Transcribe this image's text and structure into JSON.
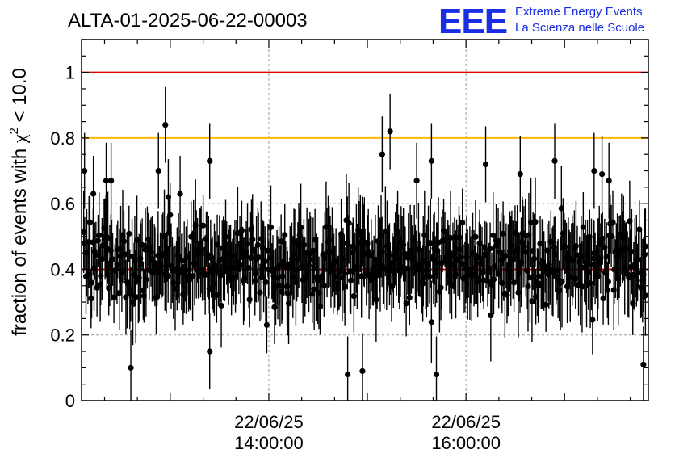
{
  "header": {
    "title": "ALTA-01-2025-06-22-00003",
    "logo_letters": "EEE",
    "logo_line1": "Extreme Energy Events",
    "logo_line2": "La Scienza nelle Scuole"
  },
  "colors": {
    "reference_line": "#e00000",
    "warning_line": "#ffb800",
    "logo": "#1a2ee6",
    "points": "#000000",
    "grid": "#999999"
  },
  "chart_data": {
    "type": "scatter",
    "title": "ALTA-01-2025-06-22-00003",
    "ylabel_main": "fraction of events with ",
    "ylabel_chi": "χ",
    "ylabel_sup": "2",
    "ylabel_tail": " < 10.0",
    "xlabel": "",
    "ylim": [
      0,
      1.1
    ],
    "xlim_hours": [
      12.1,
      17.85
    ],
    "y_ticks": [
      "0",
      "0.2",
      "0.4",
      "0.6",
      "0.8",
      "1"
    ],
    "x_major_ticks": [
      {
        "hour": 14,
        "date_label": "22/06/25",
        "time_label": "14:00:00"
      },
      {
        "hour": 16,
        "date_label": "22/06/25",
        "time_label": "16:00:00"
      }
    ],
    "reference_lines": [
      {
        "y": 1.0,
        "color": "#e00000"
      },
      {
        "y": 0.8,
        "color": "#ffb800"
      },
      {
        "y": 0.4,
        "color": "#e00000"
      }
    ],
    "grid": true,
    "point_count": 560,
    "mean_value": 0.42,
    "spread": 0.12,
    "typical_error": 0.11,
    "highlighted_points": [
      {
        "x": 12.13,
        "y": 0.7
      },
      {
        "x": 12.22,
        "y": 0.63
      },
      {
        "x": 12.35,
        "y": 0.67
      },
      {
        "x": 12.4,
        "y": 0.67
      },
      {
        "x": 12.6,
        "y": 0.1
      },
      {
        "x": 12.88,
        "y": 0.7
      },
      {
        "x": 12.95,
        "y": 0.84
      },
      {
        "x": 12.98,
        "y": 0.62
      },
      {
        "x": 13.1,
        "y": 0.63
      },
      {
        "x": 13.4,
        "y": 0.73
      },
      {
        "x": 13.4,
        "y": 0.15
      },
      {
        "x": 14.8,
        "y": 0.08
      },
      {
        "x": 14.95,
        "y": 0.09
      },
      {
        "x": 15.15,
        "y": 0.75
      },
      {
        "x": 15.23,
        "y": 0.82
      },
      {
        "x": 15.5,
        "y": 0.67
      },
      {
        "x": 15.65,
        "y": 0.73
      },
      {
        "x": 15.7,
        "y": 0.08
      },
      {
        "x": 16.2,
        "y": 0.72
      },
      {
        "x": 16.55,
        "y": 0.69
      },
      {
        "x": 16.9,
        "y": 0.73
      },
      {
        "x": 17.3,
        "y": 0.7
      },
      {
        "x": 17.38,
        "y": 0.69
      },
      {
        "x": 17.45,
        "y": 0.67
      },
      {
        "x": 17.8,
        "y": 0.11
      },
      {
        "x": 17.82,
        "y": 0.47
      }
    ]
  }
}
